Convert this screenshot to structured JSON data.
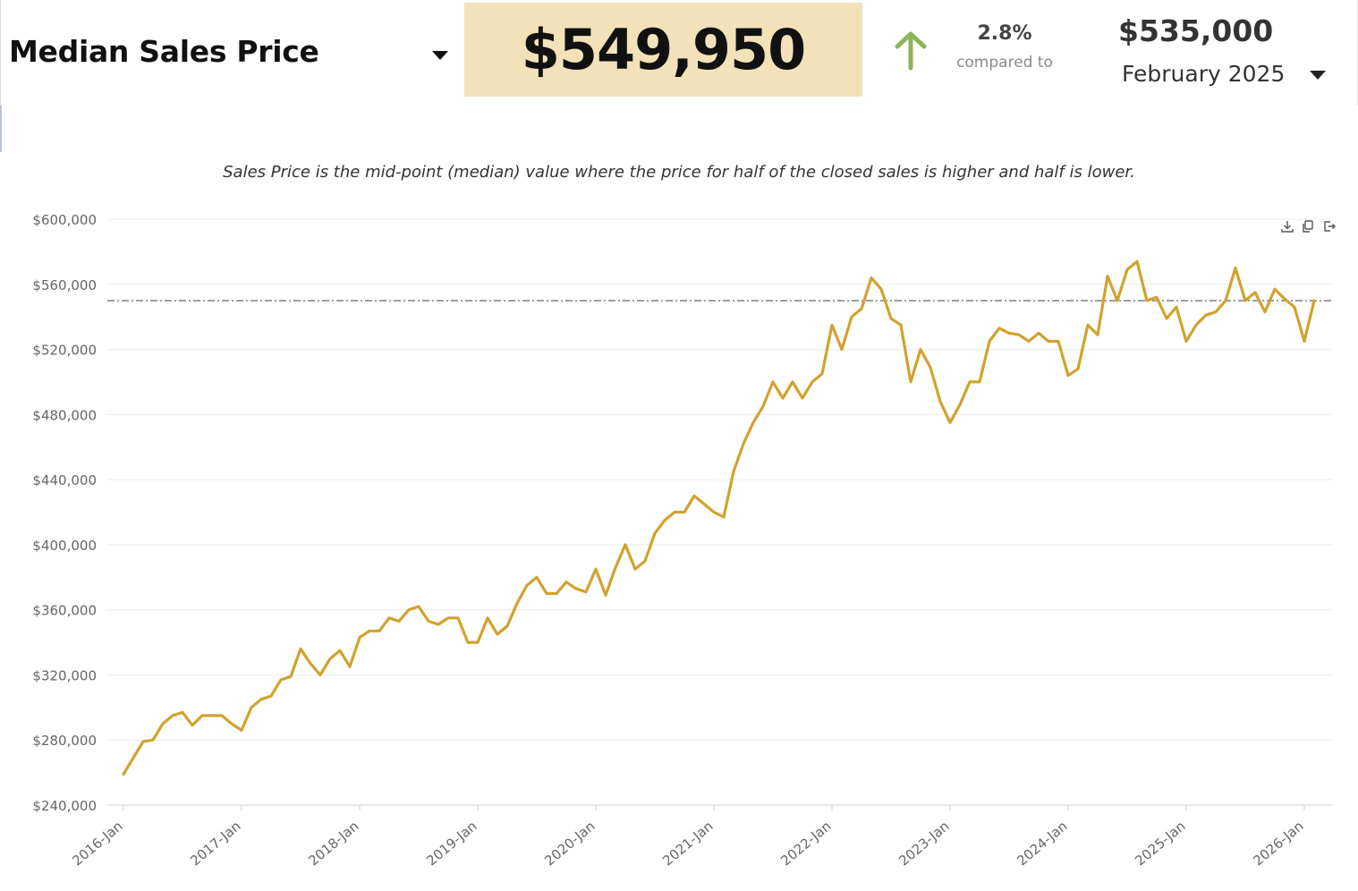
{
  "header": {
    "metric_label": "Median Sales Price",
    "current_value": "$549,950",
    "change_percent": "2.8%",
    "compared_to_label": "compared to",
    "comparison_value": "$535,000",
    "comparison_period": "February 2025"
  },
  "colors": {
    "series": "#d1a22e",
    "highlight_box": "#f3e2b9",
    "arrow": "#8db35a",
    "reference_line": "#555555",
    "grid": "#ececec"
  },
  "icons": {
    "metric_dropdown": "caret-down-icon",
    "trend": "arrow-up-icon",
    "period_dropdown": "caret-down-icon",
    "download": "download-icon",
    "copy": "copy-icon",
    "export": "export-icon"
  },
  "chart_data": {
    "type": "line",
    "title": "Sales Price is the mid-point (median) value where the price for half of the closed sales is higher and half is lower.",
    "xlabel": "",
    "ylabel": "",
    "x_start": "2016-Jan",
    "x_ticks": [
      "2016-Jan",
      "2017-Jan",
      "2018-Jan",
      "2019-Jan",
      "2020-Jan",
      "2021-Jan",
      "2022-Jan",
      "2023-Jan",
      "2024-Jan",
      "2025-Jan",
      "2026-Jan"
    ],
    "y_ticks": [
      240000,
      280000,
      320000,
      360000,
      400000,
      440000,
      480000,
      520000,
      560000,
      600000
    ],
    "y_tick_labels": [
      "$240,000",
      "$280,000",
      "$320,000",
      "$360,000",
      "$400,000",
      "$440,000",
      "$480,000",
      "$520,000",
      "$560,000",
      "$600,000"
    ],
    "ylim": [
      240000,
      600000
    ],
    "grid": true,
    "reference_line": {
      "value": 549950,
      "style": "dash-dot"
    },
    "series": [
      {
        "name": "Median Sales Price",
        "values": [
          259000,
          269000,
          279000,
          280000,
          290000,
          295000,
          297000,
          289000,
          295000,
          295000,
          295000,
          290000,
          286000,
          300000,
          305000,
          307000,
          317000,
          319000,
          336000,
          327000,
          320000,
          330000,
          335000,
          325000,
          343000,
          347000,
          347000,
          355000,
          353000,
          360000,
          362000,
          353000,
          351000,
          355000,
          355000,
          340000,
          340000,
          355000,
          345000,
          350000,
          364000,
          375000,
          380000,
          370000,
          370000,
          377000,
          373000,
          371000,
          385000,
          369000,
          386000,
          400000,
          385000,
          390000,
          407000,
          415000,
          420000,
          420000,
          430000,
          425000,
          420000,
          417000,
          445000,
          462000,
          475000,
          485000,
          500000,
          490000,
          500000,
          490000,
          500000,
          505000,
          535000,
          520000,
          540000,
          545000,
          564000,
          557000,
          539000,
          535000,
          500000,
          520000,
          509000,
          488000,
          475000,
          486000,
          500000,
          500000,
          525000,
          533000,
          530000,
          529000,
          525000,
          530000,
          525000,
          525000,
          504000,
          508000,
          535000,
          529000,
          565000,
          550000,
          569000,
          574000,
          550000,
          552000,
          539000,
          546000,
          525000,
          535000,
          541000,
          543000,
          550000,
          570000,
          550000,
          555000,
          543000,
          557000,
          551000,
          546000,
          525000,
          550000
        ]
      }
    ]
  }
}
